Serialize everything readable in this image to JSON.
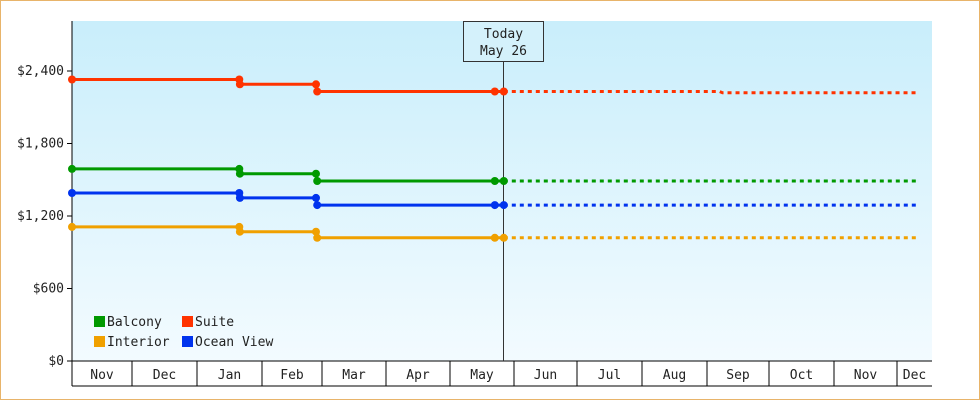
{
  "chart_data": {
    "type": "line",
    "title": "",
    "xlabel": "",
    "ylabel": "",
    "ylim": [
      0,
      2400
    ],
    "yticks": [
      0,
      600,
      1200,
      1800,
      2400
    ],
    "ytick_labels": [
      "$0",
      "$600",
      "$1,200",
      "$1,800",
      "$2,400"
    ],
    "months": [
      "Nov",
      "Dec",
      "Jan",
      "Feb",
      "Mar",
      "Apr",
      "May",
      "Jun",
      "Jul",
      "Aug",
      "Sep",
      "Oct",
      "Nov",
      "Dec"
    ],
    "today": {
      "line1": "Today",
      "line2": "May 26",
      "x": 6.83
    },
    "legend": {
      "position": "bottom-left"
    },
    "series": [
      {
        "name": "Suite",
        "color": "#ff3300",
        "points": [
          [
            0,
            2330
          ],
          [
            2.65,
            2330
          ],
          [
            2.66,
            2290
          ],
          [
            3.9,
            2290
          ],
          [
            3.92,
            2230
          ],
          [
            6.7,
            2230
          ],
          [
            6.84,
            2230
          ]
        ],
        "forecast": [
          [
            6.84,
            2230
          ],
          [
            10.2,
            2230
          ],
          [
            10.25,
            2220
          ],
          [
            13.6,
            2220
          ]
        ]
      },
      {
        "name": "Balcony",
        "color": "#009900",
        "points": [
          [
            0,
            1590
          ],
          [
            2.65,
            1590
          ],
          [
            2.66,
            1550
          ],
          [
            3.9,
            1550
          ],
          [
            3.92,
            1490
          ],
          [
            6.7,
            1490
          ],
          [
            6.84,
            1490
          ]
        ],
        "forecast": [
          [
            6.84,
            1490
          ],
          [
            13.6,
            1490
          ]
        ]
      },
      {
        "name": "Ocean View",
        "color": "#0033ee",
        "points": [
          [
            0,
            1390
          ],
          [
            2.65,
            1390
          ],
          [
            2.66,
            1350
          ],
          [
            3.9,
            1350
          ],
          [
            3.92,
            1290
          ],
          [
            6.7,
            1290
          ],
          [
            6.84,
            1290
          ]
        ],
        "forecast": [
          [
            6.84,
            1290
          ],
          [
            13.6,
            1290
          ]
        ]
      },
      {
        "name": "Interior",
        "color": "#f0a000",
        "points": [
          [
            0,
            1110
          ],
          [
            2.65,
            1110
          ],
          [
            2.66,
            1070
          ],
          [
            3.9,
            1070
          ],
          [
            3.92,
            1020
          ],
          [
            6.7,
            1020
          ],
          [
            6.84,
            1020
          ]
        ],
        "forecast": [
          [
            6.84,
            1020
          ],
          [
            13.6,
            1020
          ]
        ]
      }
    ],
    "legend_order": [
      "Balcony",
      "Suite",
      "Interior",
      "Ocean View"
    ]
  }
}
